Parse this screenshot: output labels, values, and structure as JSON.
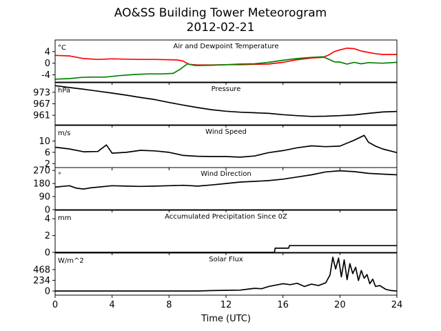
{
  "title": "AO&SS Building Tower Meteorogram",
  "subtitle": "2012-02-21",
  "xlabel": "Time (UTC)",
  "colors": {
    "temperature": "#ff0000",
    "dewpoint": "#008000",
    "black": "#000000"
  },
  "chart_data": [
    {
      "type": "line",
      "title": "Air and Dewpoint Temperature",
      "unit": "°C",
      "ylim": [
        -6.5,
        8
      ],
      "yticks": [
        -4,
        0,
        4
      ],
      "xlim": [
        0,
        24
      ],
      "xticks": [
        0,
        4,
        8,
        12,
        16,
        20,
        24
      ],
      "series": [
        {
          "key": "temperature",
          "color": "#ff0000",
          "x": [
            0,
            1,
            2,
            3,
            4,
            5,
            6,
            7,
            8,
            8.6,
            9.0,
            9.4,
            10,
            11,
            12,
            13,
            14,
            15,
            16,
            17,
            18,
            18.8,
            19.2,
            19.6,
            20,
            20.5,
            21,
            21.5,
            22,
            22.5,
            23,
            24
          ],
          "y": [
            2.7,
            2.5,
            1.6,
            1.3,
            1.5,
            1.4,
            1.3,
            1.3,
            1.2,
            1.1,
            0.7,
            -0.4,
            -0.6,
            -0.6,
            -0.5,
            -0.5,
            -0.4,
            -0.3,
            0.3,
            1.2,
            1.8,
            2.0,
            2.8,
            4.0,
            4.6,
            5.2,
            5.0,
            4.2,
            3.7,
            3.3,
            3.0,
            3.0
          ]
        },
        {
          "key": "dewpoint",
          "color": "#008000",
          "x": [
            0,
            1,
            1.8,
            2.5,
            3.5,
            4.5,
            5.5,
            6.5,
            7.5,
            8.3,
            8.8,
            9.3,
            9.7,
            10,
            11,
            12,
            13,
            14,
            15,
            16,
            17,
            18,
            18.8,
            19.2,
            19.6,
            20,
            20.5,
            21,
            21.5,
            22,
            23,
            24
          ],
          "y": [
            -5.5,
            -5.3,
            -4.9,
            -4.8,
            -4.8,
            -4.3,
            -3.9,
            -3.7,
            -3.7,
            -3.5,
            -2.0,
            -0.2,
            -0.7,
            -0.8,
            -0.7,
            -0.5,
            -0.3,
            -0.2,
            0.3,
            1.0,
            1.6,
            2.0,
            2.2,
            1.4,
            0.5,
            0.4,
            -0.3,
            0.3,
            -0.2,
            0.2,
            0.0,
            0.3
          ]
        }
      ]
    },
    {
      "type": "line",
      "title": "Pressure",
      "unit": "hPa",
      "ylim": [
        956,
        978
      ],
      "yticks": [
        961,
        967,
        973
      ],
      "xlim": [
        0,
        24
      ],
      "xticks": [
        0,
        4,
        8,
        12,
        16,
        20,
        24
      ],
      "series": [
        {
          "key": "pressure",
          "color": "#000000",
          "x": [
            0,
            1,
            2,
            3,
            4,
            5,
            6,
            7,
            8,
            9,
            10,
            11,
            12,
            13,
            14,
            15,
            16,
            17,
            18,
            19,
            20,
            21,
            22,
            23,
            24
          ],
          "y": [
            976.5,
            975.5,
            974.6,
            973.6,
            972.6,
            971.5,
            970.3,
            969.2,
            967.7,
            966.3,
            965.0,
            963.9,
            963.1,
            962.6,
            962.3,
            962.0,
            961.3,
            960.8,
            960.4,
            960.5,
            960.8,
            961.2,
            962.0,
            962.7,
            963.0
          ]
        }
      ]
    },
    {
      "type": "line",
      "title": "Wind Speed",
      "unit": "m/s",
      "ylim": [
        0.6,
        15.5
      ],
      "yticks": [
        2,
        6,
        10
      ],
      "xlim": [
        0,
        24
      ],
      "xticks": [
        0,
        4,
        8,
        12,
        16,
        20,
        24
      ],
      "series": [
        {
          "key": "wind_speed",
          "color": "#000000",
          "x": [
            0,
            1,
            2,
            3,
            3.6,
            4,
            5,
            6,
            7,
            8,
            9,
            10,
            11,
            12,
            13,
            14,
            15,
            16,
            17,
            18,
            19,
            20,
            21,
            21.7,
            22,
            22.5,
            23,
            24
          ],
          "y": [
            7.8,
            7.2,
            6.2,
            6.3,
            8.6,
            5.7,
            6.0,
            6.7,
            6.5,
            6.0,
            4.9,
            4.6,
            4.5,
            4.5,
            4.3,
            4.7,
            5.9,
            6.6,
            7.6,
            8.3,
            8.0,
            8.2,
            10.3,
            12.0,
            9.6,
            8.2,
            7.2,
            5.9
          ]
        }
      ]
    },
    {
      "type": "line",
      "title": "Wind Direction",
      "unit": "°",
      "ylim": [
        0,
        290
      ],
      "yticks": [
        0,
        90,
        180,
        270
      ],
      "xlim": [
        0,
        24
      ],
      "xticks": [
        0,
        4,
        8,
        12,
        16,
        20,
        24
      ],
      "series": [
        {
          "key": "wind_direction",
          "color": "#000000",
          "x": [
            0,
            0.5,
            1,
            1.5,
            2,
            2.5,
            3,
            4,
            5,
            6,
            7,
            8,
            9,
            10,
            11,
            12,
            13,
            14,
            15,
            16,
            17,
            18,
            19,
            20,
            21,
            22,
            23,
            24
          ],
          "y": [
            155,
            160,
            165,
            148,
            142,
            150,
            155,
            165,
            162,
            160,
            162,
            165,
            168,
            162,
            170,
            180,
            190,
            195,
            200,
            210,
            225,
            240,
            260,
            268,
            262,
            250,
            245,
            240
          ]
        }
      ]
    },
    {
      "type": "line",
      "title": "Accumulated Precipitation Since 0Z",
      "unit": "mm",
      "ylim": [
        0,
        5
      ],
      "yticks": [
        0,
        2,
        4
      ],
      "xlim": [
        0,
        24
      ],
      "xticks": [
        0,
        4,
        8,
        12,
        16,
        20,
        24
      ],
      "series": [
        {
          "key": "precip",
          "color": "#000000",
          "x": [
            0,
            15.4,
            15.45,
            16.4,
            16.45,
            24
          ],
          "y": [
            0,
            0,
            0.5,
            0.5,
            0.8,
            0.8
          ]
        }
      ]
    },
    {
      "type": "line",
      "title": "Solar Flux",
      "unit": "W/m^2",
      "ylim": [
        -90,
        830
      ],
      "yticks": [
        0,
        234,
        468
      ],
      "xlim": [
        0,
        24
      ],
      "xticks": [
        0,
        4,
        8,
        12,
        16,
        20,
        24
      ],
      "series": [
        {
          "key": "solar",
          "color": "#000000",
          "x": [
            0,
            2,
            4,
            6,
            8,
            10,
            11,
            12,
            13,
            13.5,
            14,
            14.5,
            15,
            15.5,
            16,
            16.5,
            17,
            17.5,
            18,
            18.5,
            19,
            19.3,
            19.5,
            19.7,
            19.9,
            20.1,
            20.3,
            20.5,
            20.7,
            20.9,
            21.1,
            21.3,
            21.5,
            21.7,
            21.9,
            22.1,
            22.3,
            22.5,
            22.8,
            23.2,
            23.6,
            24
          ],
          "y": [
            0,
            0,
            0,
            0,
            0,
            0,
            10,
            15,
            20,
            40,
            60,
            50,
            100,
            130,
            160,
            140,
            170,
            100,
            150,
            120,
            180,
            350,
            740,
            480,
            720,
            310,
            680,
            250,
            600,
            380,
            520,
            230,
            450,
            280,
            360,
            160,
            260,
            100,
            120,
            40,
            10,
            0
          ]
        }
      ]
    }
  ]
}
